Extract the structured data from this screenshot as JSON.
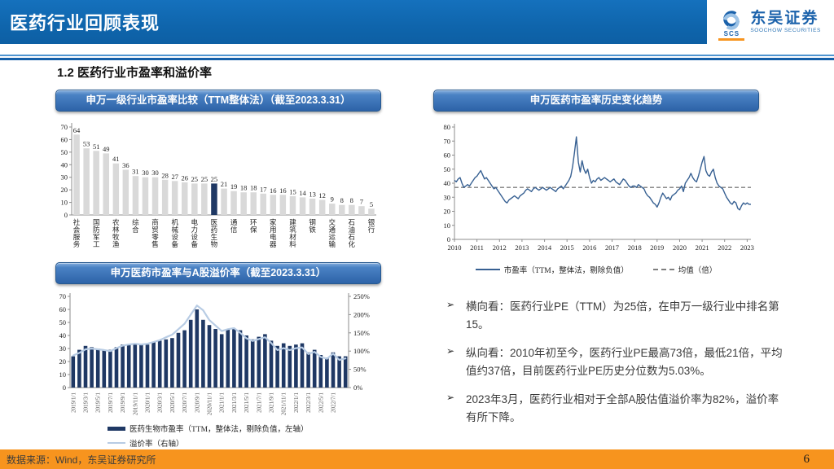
{
  "header": {
    "title": "医药行业回顾表现",
    "logo": {
      "cn": "东吴证券",
      "en": "SOOCHOW SECURITIES",
      "mark": "SCS"
    }
  },
  "section_title": "1.2 医药行业市盈率和溢价率",
  "bullet_marker": "➢",
  "bullets": [
    "横向看：医药行业PE（TTM）为25倍，在申万一级行业中排名第15。",
    "纵向看：2010年初至今，医药行业PE最高73倍，最低21倍，平均值约37倍，目前医药行业PE历史分位数为5.03%。",
    "2023年3月，医药行业相对于全部A股估值溢价率为82%，溢价率有所下降。"
  ],
  "footer": {
    "source": "数据来源：Wind，东吴证券研究所",
    "page": "6"
  },
  "colors": {
    "header_blue": "#0f65ac",
    "pill_blue": "#2d63a8",
    "navy_bar": "#1f3864",
    "gray_bar": "#d9d9d9",
    "pe_line": "#376092",
    "mean_line": "#7f7f7f",
    "premium_line": "#b8cce4",
    "footer_orange": "#f7941e"
  },
  "chart_data": [
    {
      "type": "bar",
      "title": "申万一级行业市盈率比较（TTM整体法）（截至2023.3.31）",
      "values": [
        64,
        53,
        51,
        49,
        41,
        36,
        31,
        30,
        30,
        28,
        27,
        26,
        25,
        25,
        25,
        21,
        19,
        18,
        18,
        17,
        16,
        16,
        15,
        14,
        13,
        12,
        9,
        8,
        8,
        7,
        5
      ],
      "category_labels": [
        "社会服务",
        "国防军工",
        "农林牧渔",
        "综合",
        "商贸零售",
        "机械设备",
        "电力设备",
        "医药生物",
        "通信",
        "环保",
        "家用电器",
        "建筑材料",
        "钢铁",
        "交通运输",
        "石油石化",
        "银行"
      ],
      "label_every": 2,
      "highlight_index": 14,
      "highlight_label": "医药生物",
      "ylim": [
        0,
        70
      ],
      "yticks": [
        0,
        10,
        20,
        30,
        40,
        50,
        60,
        70
      ],
      "bar_color": "#d9d9d9",
      "highlight_color": "#1f3864"
    },
    {
      "type": "line",
      "title": "申万医药市盈率历史变化趋势",
      "x_start": "2010/1",
      "x_step": "month",
      "monthly_values": [
        42,
        41,
        43,
        44,
        40,
        37,
        38,
        39,
        38,
        40,
        42,
        44,
        45,
        47,
        49,
        46,
        43,
        44,
        42,
        40,
        38,
        36,
        37,
        35,
        33,
        31,
        29,
        27,
        26,
        28,
        29,
        30,
        31,
        30,
        29,
        31,
        32,
        33,
        35,
        36,
        35,
        34,
        36,
        37,
        36,
        35,
        36,
        37,
        36,
        35,
        36,
        37,
        36,
        35,
        34,
        36,
        37,
        38,
        36,
        38,
        40,
        42,
        45,
        52,
        62,
        73,
        55,
        48,
        56,
        50,
        47,
        50,
        44,
        40,
        42,
        41,
        43,
        44,
        42,
        43,
        44,
        43,
        42,
        41,
        42,
        43,
        41,
        40,
        39,
        41,
        43,
        42,
        40,
        38,
        37,
        38,
        38,
        37,
        39,
        38,
        37,
        36,
        33,
        31,
        30,
        28,
        26,
        25,
        23,
        26,
        30,
        33,
        31,
        29,
        30,
        28,
        31,
        32,
        33,
        35,
        36,
        38,
        34,
        40,
        42,
        44,
        47,
        44,
        42,
        41,
        45,
        50,
        55,
        59,
        49,
        46,
        45,
        48,
        50,
        44,
        40,
        38,
        37,
        36,
        33,
        30,
        28,
        26,
        25,
        27,
        26,
        22,
        21,
        24,
        26,
        25,
        26,
        25,
        25
      ],
      "mean_value": 37,
      "ylim": [
        0,
        80
      ],
      "yticks": [
        0,
        10,
        20,
        30,
        40,
        50,
        60,
        70,
        80
      ],
      "xticks": [
        2010,
        2011,
        2012,
        2013,
        2014,
        2015,
        2016,
        2017,
        2018,
        2019,
        2020,
        2021,
        2022,
        2023
      ],
      "legend": [
        "市盈率（TTM，整体法，剔除负值）",
        "均值（倍）"
      ],
      "line_color": "#376092",
      "mean_color": "#7f7f7f"
    },
    {
      "type": "bar+line",
      "title": "申万医药市盈率与A股溢价率（截至2023.3.31）",
      "x_labels": [
        "2019/1/1",
        "2019/3/1",
        "2019/5/1",
        "2019/7/1",
        "2019/9/1",
        "2019/11/1",
        "2020/1/1",
        "2020/3/1",
        "2020/5/1",
        "2020/7/1",
        "2020/9/1",
        "2020/11/1",
        "2021/1/1",
        "2021/3/1",
        "2021/5/1",
        "2021/7/1",
        "2021/9/1",
        "2021/11/1",
        "2022/1/1",
        "2022/3/1",
        "2022/5/1",
        "2022/7/1"
      ],
      "label_every": 2,
      "pe_values": [
        24,
        29,
        32,
        31,
        30,
        29,
        29,
        31,
        33,
        33,
        34,
        33,
        33,
        35,
        36,
        37,
        38,
        42,
        44,
        52,
        60,
        52,
        48,
        45,
        41,
        45,
        45,
        44,
        40,
        37,
        39,
        41,
        36,
        32,
        34,
        32,
        33,
        34,
        27,
        29,
        25,
        23,
        27,
        24,
        24
      ],
      "premium_values": [
        88,
        95,
        105,
        107,
        105,
        103,
        100,
        108,
        115,
        118,
        120,
        118,
        120,
        125,
        130,
        138,
        145,
        160,
        175,
        200,
        225,
        212,
        185,
        170,
        155,
        160,
        163,
        150,
        135,
        128,
        133,
        138,
        122,
        103,
        108,
        103,
        108,
        110,
        92,
        98,
        84,
        79,
        93,
        76,
        80
      ],
      "left_ylim": [
        0,
        70
      ],
      "left_yticks": [
        0,
        10,
        20,
        30,
        40,
        50,
        60,
        70
      ],
      "right_ylim": [
        0,
        250
      ],
      "right_yticks": [
        "0%",
        "50%",
        "100%",
        "150%",
        "200%",
        "250%"
      ],
      "legend": [
        "医药生物市盈率（TTM，整体法，剔除负值，左轴）",
        "溢价率（右轴）"
      ],
      "bar_color": "#1f3864",
      "line_color": "#b8cce4"
    }
  ]
}
